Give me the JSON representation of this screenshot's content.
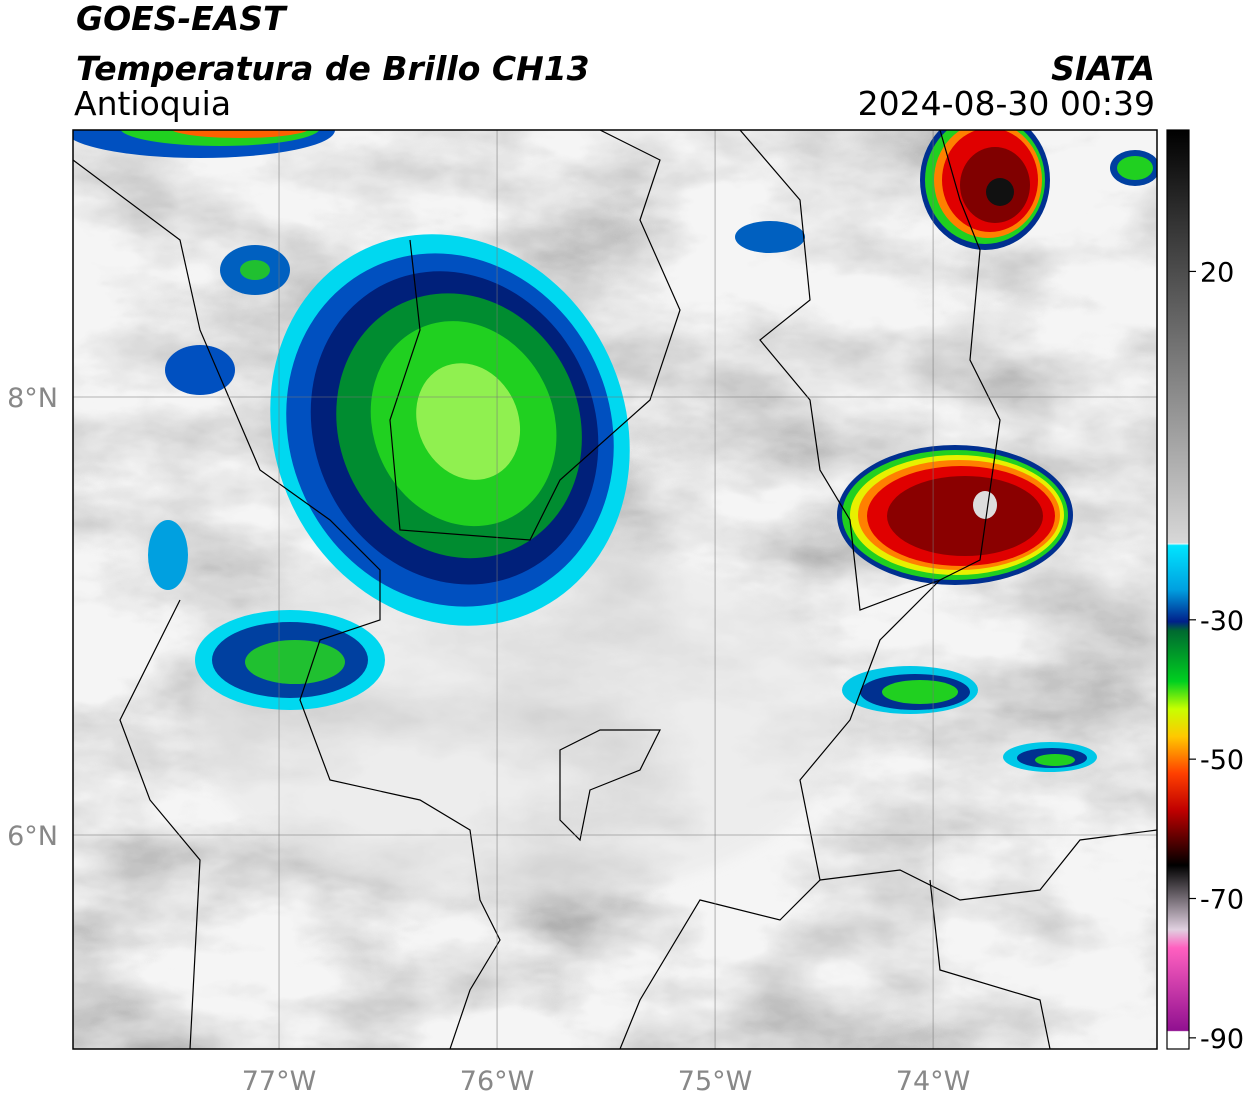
{
  "header": {
    "satellite": "GOES-EAST",
    "product": "Temperatura de Brillo CH13",
    "region": "Antioquia",
    "source": "SIATA",
    "datetime": "2024-08-30 00:39"
  },
  "map": {
    "lon_lim": [
      -77.945,
      -72.973
    ],
    "lat_lim": [
      5.023,
      9.219
    ],
    "lon_ticks": [
      {
        "value": -77,
        "label": "77°W"
      },
      {
        "value": -76,
        "label": "76°W"
      },
      {
        "value": -75,
        "label": "75°W"
      },
      {
        "value": -74,
        "label": "74°W"
      }
    ],
    "lat_ticks": [
      {
        "value": 8,
        "label": "8°N"
      },
      {
        "value": 6,
        "label": "6°N"
      }
    ]
  },
  "colorbar": {
    "lim": [
      -91.6,
      40.3
    ],
    "ticks": [
      20,
      -30,
      -50,
      -70,
      -90
    ]
  }
}
